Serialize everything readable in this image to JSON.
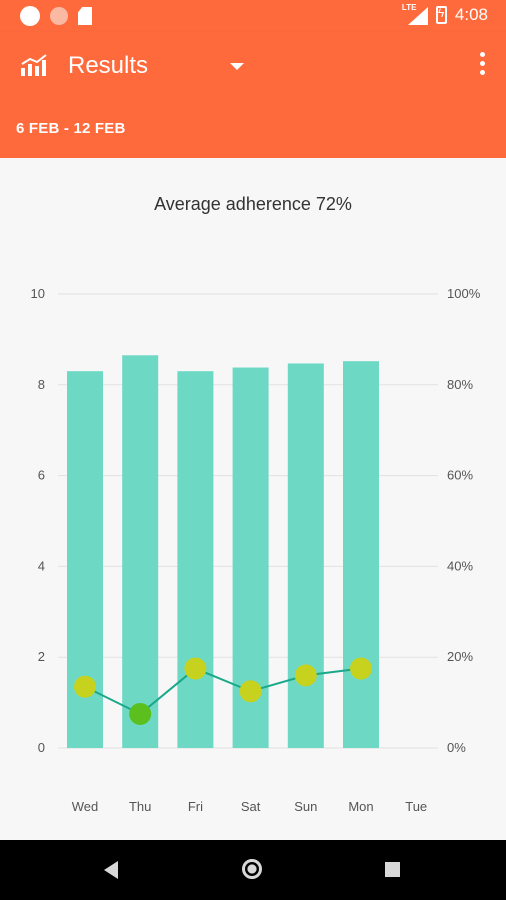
{
  "status_bar": {
    "time": "4:08",
    "network": "LTE"
  },
  "app_bar": {
    "title": "Results",
    "date_range": "6 FEB - 12 FEB"
  },
  "colors": {
    "accent": "#ff6a3d",
    "bar": "#6dd8c4",
    "line": "#1aa88a",
    "point_low": "#5bbf1e",
    "point_high": "#c6d21e"
  },
  "chart_data": {
    "type": "bar",
    "title": "Average adherence 72%",
    "categories": [
      "Wed",
      "Thu",
      "Fri",
      "Sat",
      "Sun",
      "Mon",
      "Tue"
    ],
    "series": [
      {
        "type": "bar",
        "axis": "left",
        "values": [
          8.3,
          8.65,
          8.3,
          8.38,
          8.47,
          8.52,
          null
        ]
      },
      {
        "type": "line",
        "axis": "left",
        "values": [
          1.35,
          0.75,
          1.75,
          1.25,
          1.6,
          1.75,
          null
        ]
      }
    ],
    "y_left": {
      "min": 0,
      "max": 10,
      "ticks": [
        "0",
        "2",
        "4",
        "6",
        "8",
        "10"
      ]
    },
    "y_right": {
      "min": 0,
      "max": 100,
      "ticks": [
        "0%",
        "20%",
        "40%",
        "60%",
        "80%",
        "100%"
      ]
    },
    "grid": true
  }
}
